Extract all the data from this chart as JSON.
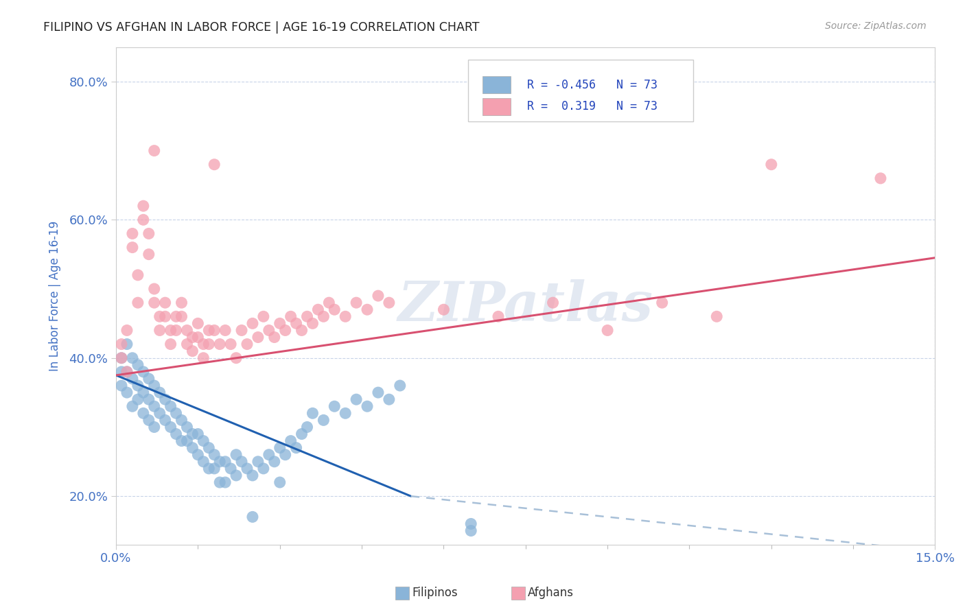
{
  "title": "FILIPINO VS AFGHAN IN LABOR FORCE | AGE 16-19 CORRELATION CHART",
  "source": "Source: ZipAtlas.com",
  "ylabel": "In Labor Force | Age 16-19",
  "xlim": [
    0.0,
    0.15
  ],
  "ylim": [
    0.13,
    0.85
  ],
  "ytick_values": [
    0.2,
    0.4,
    0.6,
    0.8
  ],
  "ytick_labels": [
    "20.0%",
    "40.0%",
    "60.0%",
    "80.0%"
  ],
  "xtick_values": [
    0.0,
    0.15
  ],
  "xtick_labels": [
    "0.0%",
    "15.0%"
  ],
  "filipino_color": "#8ab4d8",
  "afghan_color": "#f4a0b0",
  "trend_filipino_solid_color": "#2060b0",
  "trend_filipino_dashed_color": "#a8c0d8",
  "trend_afghan_color": "#d85070",
  "watermark": "ZIPatlas",
  "background_color": "#ffffff",
  "title_color": "#222222",
  "axis_label_color": "#4472c4",
  "tick_color": "#4472c4",
  "grid_color": "#c8d4e8",
  "legend_label_color": "#2244bb",
  "filipino_points": [
    [
      0.001,
      0.38
    ],
    [
      0.001,
      0.4
    ],
    [
      0.001,
      0.36
    ],
    [
      0.002,
      0.42
    ],
    [
      0.002,
      0.38
    ],
    [
      0.002,
      0.35
    ],
    [
      0.003,
      0.4
    ],
    [
      0.003,
      0.37
    ],
    [
      0.003,
      0.33
    ],
    [
      0.004,
      0.39
    ],
    [
      0.004,
      0.36
    ],
    [
      0.004,
      0.34
    ],
    [
      0.005,
      0.38
    ],
    [
      0.005,
      0.35
    ],
    [
      0.005,
      0.32
    ],
    [
      0.006,
      0.37
    ],
    [
      0.006,
      0.34
    ],
    [
      0.006,
      0.31
    ],
    [
      0.007,
      0.36
    ],
    [
      0.007,
      0.33
    ],
    [
      0.007,
      0.3
    ],
    [
      0.008,
      0.35
    ],
    [
      0.008,
      0.32
    ],
    [
      0.009,
      0.34
    ],
    [
      0.009,
      0.31
    ],
    [
      0.01,
      0.33
    ],
    [
      0.01,
      0.3
    ],
    [
      0.011,
      0.32
    ],
    [
      0.011,
      0.29
    ],
    [
      0.012,
      0.31
    ],
    [
      0.012,
      0.28
    ],
    [
      0.013,
      0.3
    ],
    [
      0.013,
      0.28
    ],
    [
      0.014,
      0.29
    ],
    [
      0.014,
      0.27
    ],
    [
      0.015,
      0.29
    ],
    [
      0.015,
      0.26
    ],
    [
      0.016,
      0.28
    ],
    [
      0.016,
      0.25
    ],
    [
      0.017,
      0.27
    ],
    [
      0.017,
      0.24
    ],
    [
      0.018,
      0.26
    ],
    [
      0.018,
      0.24
    ],
    [
      0.019,
      0.25
    ],
    [
      0.019,
      0.22
    ],
    [
      0.02,
      0.25
    ],
    [
      0.02,
      0.22
    ],
    [
      0.021,
      0.24
    ],
    [
      0.022,
      0.26
    ],
    [
      0.022,
      0.23
    ],
    [
      0.023,
      0.25
    ],
    [
      0.024,
      0.24
    ],
    [
      0.025,
      0.23
    ],
    [
      0.026,
      0.25
    ],
    [
      0.027,
      0.24
    ],
    [
      0.028,
      0.26
    ],
    [
      0.029,
      0.25
    ],
    [
      0.03,
      0.27
    ],
    [
      0.031,
      0.26
    ],
    [
      0.032,
      0.28
    ],
    [
      0.033,
      0.27
    ],
    [
      0.034,
      0.29
    ],
    [
      0.035,
      0.3
    ],
    [
      0.036,
      0.32
    ],
    [
      0.038,
      0.31
    ],
    [
      0.04,
      0.33
    ],
    [
      0.042,
      0.32
    ],
    [
      0.044,
      0.34
    ],
    [
      0.046,
      0.33
    ],
    [
      0.048,
      0.35
    ],
    [
      0.05,
      0.34
    ],
    [
      0.052,
      0.36
    ],
    [
      0.065,
      0.15
    ],
    [
      0.065,
      0.16
    ],
    [
      0.03,
      0.22
    ],
    [
      0.025,
      0.17
    ]
  ],
  "afghan_points": [
    [
      0.001,
      0.4
    ],
    [
      0.001,
      0.42
    ],
    [
      0.002,
      0.44
    ],
    [
      0.002,
      0.38
    ],
    [
      0.003,
      0.58
    ],
    [
      0.003,
      0.56
    ],
    [
      0.004,
      0.52
    ],
    [
      0.004,
      0.48
    ],
    [
      0.005,
      0.62
    ],
    [
      0.005,
      0.6
    ],
    [
      0.006,
      0.58
    ],
    [
      0.006,
      0.55
    ],
    [
      0.007,
      0.5
    ],
    [
      0.007,
      0.48
    ],
    [
      0.007,
      0.7
    ],
    [
      0.008,
      0.46
    ],
    [
      0.008,
      0.44
    ],
    [
      0.009,
      0.48
    ],
    [
      0.009,
      0.46
    ],
    [
      0.01,
      0.44
    ],
    [
      0.01,
      0.42
    ],
    [
      0.011,
      0.46
    ],
    [
      0.011,
      0.44
    ],
    [
      0.012,
      0.48
    ],
    [
      0.012,
      0.46
    ],
    [
      0.013,
      0.44
    ],
    [
      0.013,
      0.42
    ],
    [
      0.014,
      0.43
    ],
    [
      0.014,
      0.41
    ],
    [
      0.015,
      0.45
    ],
    [
      0.015,
      0.43
    ],
    [
      0.016,
      0.42
    ],
    [
      0.016,
      0.4
    ],
    [
      0.017,
      0.44
    ],
    [
      0.017,
      0.42
    ],
    [
      0.018,
      0.44
    ],
    [
      0.018,
      0.68
    ],
    [
      0.019,
      0.42
    ],
    [
      0.02,
      0.44
    ],
    [
      0.021,
      0.42
    ],
    [
      0.022,
      0.4
    ],
    [
      0.023,
      0.44
    ],
    [
      0.024,
      0.42
    ],
    [
      0.025,
      0.45
    ],
    [
      0.026,
      0.43
    ],
    [
      0.027,
      0.46
    ],
    [
      0.028,
      0.44
    ],
    [
      0.029,
      0.43
    ],
    [
      0.03,
      0.45
    ],
    [
      0.031,
      0.44
    ],
    [
      0.032,
      0.46
    ],
    [
      0.033,
      0.45
    ],
    [
      0.034,
      0.44
    ],
    [
      0.035,
      0.46
    ],
    [
      0.036,
      0.45
    ],
    [
      0.037,
      0.47
    ],
    [
      0.038,
      0.46
    ],
    [
      0.039,
      0.48
    ],
    [
      0.04,
      0.47
    ],
    [
      0.042,
      0.46
    ],
    [
      0.044,
      0.48
    ],
    [
      0.046,
      0.47
    ],
    [
      0.048,
      0.49
    ],
    [
      0.05,
      0.48
    ],
    [
      0.06,
      0.47
    ],
    [
      0.07,
      0.46
    ],
    [
      0.08,
      0.48
    ],
    [
      0.09,
      0.44
    ],
    [
      0.1,
      0.48
    ],
    [
      0.11,
      0.46
    ],
    [
      0.12,
      0.68
    ],
    [
      0.14,
      0.66
    ]
  ],
  "trend_fil_x0": 0.0,
  "trend_fil_y0": 0.375,
  "trend_fil_x1": 0.054,
  "trend_fil_y1": 0.2,
  "trend_fil_dash_x1": 0.15,
  "trend_fil_dash_y1": 0.12,
  "trend_afg_x0": 0.0,
  "trend_afg_y0": 0.375,
  "trend_afg_x1": 0.15,
  "trend_afg_y1": 0.545
}
